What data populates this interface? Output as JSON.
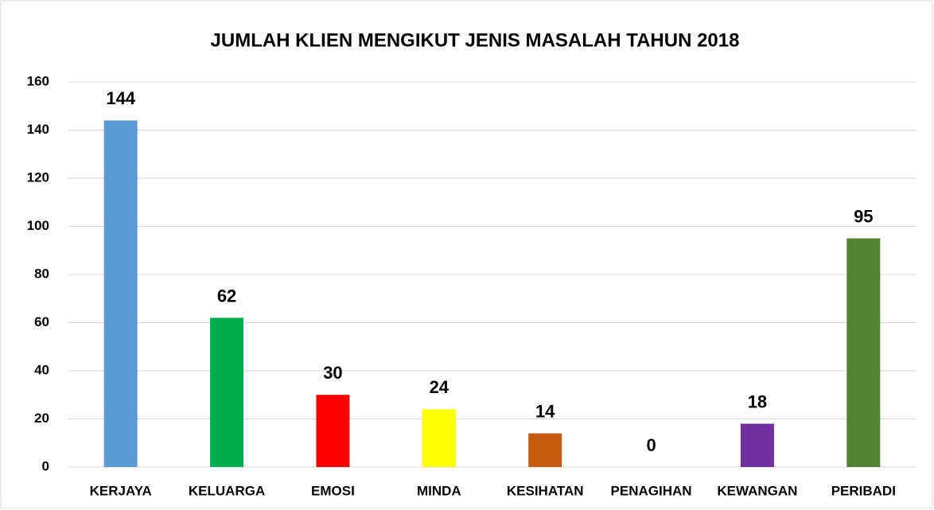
{
  "chart_data": {
    "type": "bar",
    "title": "JUMLAH KLIEN MENGIKUT JENIS MASALAH TAHUN 2018",
    "categories": [
      "KERJAYA",
      "KELUARGA",
      "EMOSI",
      "MINDA",
      "KESIHATAN",
      "PENAGIHAN",
      "KEWANGAN",
      "PERIBADI"
    ],
    "values": [
      144,
      62,
      30,
      24,
      14,
      0,
      18,
      95
    ],
    "colors": [
      "#5b9bd5",
      "#00b050",
      "#ff0000",
      "#ffff00",
      "#c55a11",
      "#ffc000",
      "#7030a0",
      "#548235"
    ],
    "ylim": [
      0,
      160
    ],
    "yticks": [
      0,
      20,
      40,
      60,
      80,
      100,
      120,
      140,
      160
    ],
    "grid": true
  }
}
